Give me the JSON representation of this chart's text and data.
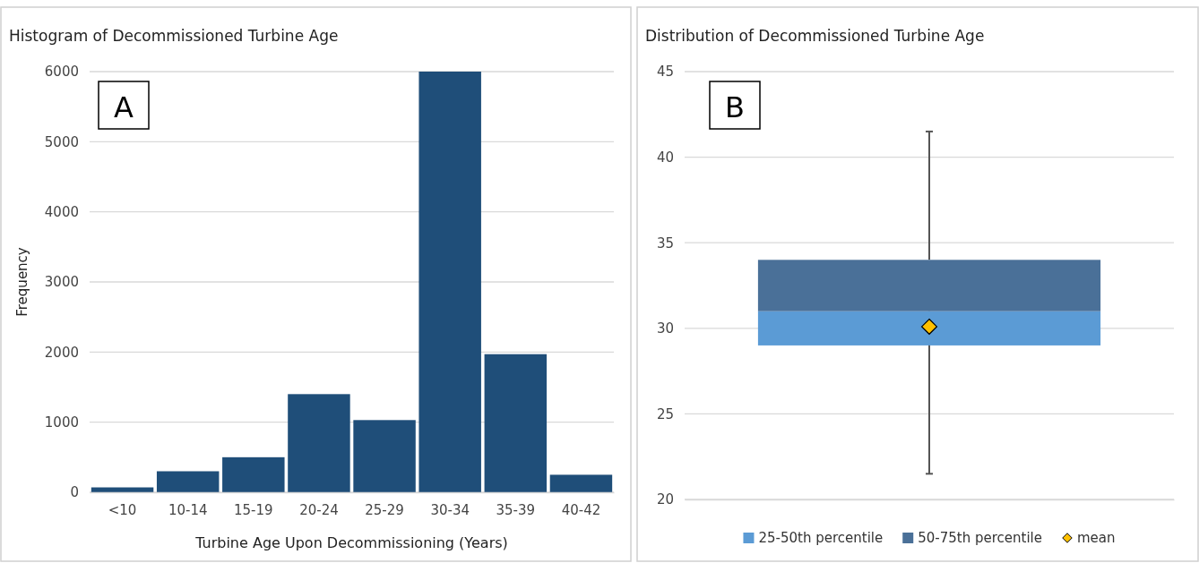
{
  "chart_data": [
    {
      "type": "bar",
      "title": "Histogram of Decommissioned Turbine Age",
      "xlabel": "Turbine Age Upon Decommissioning (Years)",
      "ylabel": "Frequency",
      "categories": [
        "<10",
        "10-14",
        "15-19",
        "20-24",
        "25-29",
        "30-34",
        "35-39",
        "40-42"
      ],
      "values": [
        70,
        300,
        500,
        1400,
        1030,
        6000,
        1970,
        250
      ],
      "color": "#1f4e79",
      "ylim": [
        0,
        6000
      ],
      "yticks": [
        0,
        1000,
        2000,
        3000,
        4000,
        5000,
        6000
      ],
      "grid": "y",
      "annotations": [
        "A"
      ]
    },
    {
      "type": "bar",
      "title": "Distribution of Decommissioned Turbine Age",
      "categories": [
        null
      ],
      "series": [
        {
          "name": "25-50th percentile",
          "color": "#5b9bd5",
          "base": [
            29
          ],
          "values": [
            2
          ],
          "errors": [
            [
              21.5,
              31
            ]
          ]
        },
        {
          "name": "50-75th percentile",
          "color": "#4a7098",
          "base": [
            31
          ],
          "values": [
            3
          ],
          "errors": [
            [
              34,
              41.5
            ]
          ]
        },
        {
          "name": "mean",
          "color": "#ffc000",
          "type": "scatter",
          "marker": "diamond",
          "values": [
            30.1
          ]
        }
      ],
      "ylim": [
        20,
        45
      ],
      "yticks": [
        20,
        25,
        30,
        35,
        40,
        45
      ],
      "grid": "y",
      "legend": "bottom",
      "annotations": [
        "B"
      ]
    }
  ]
}
